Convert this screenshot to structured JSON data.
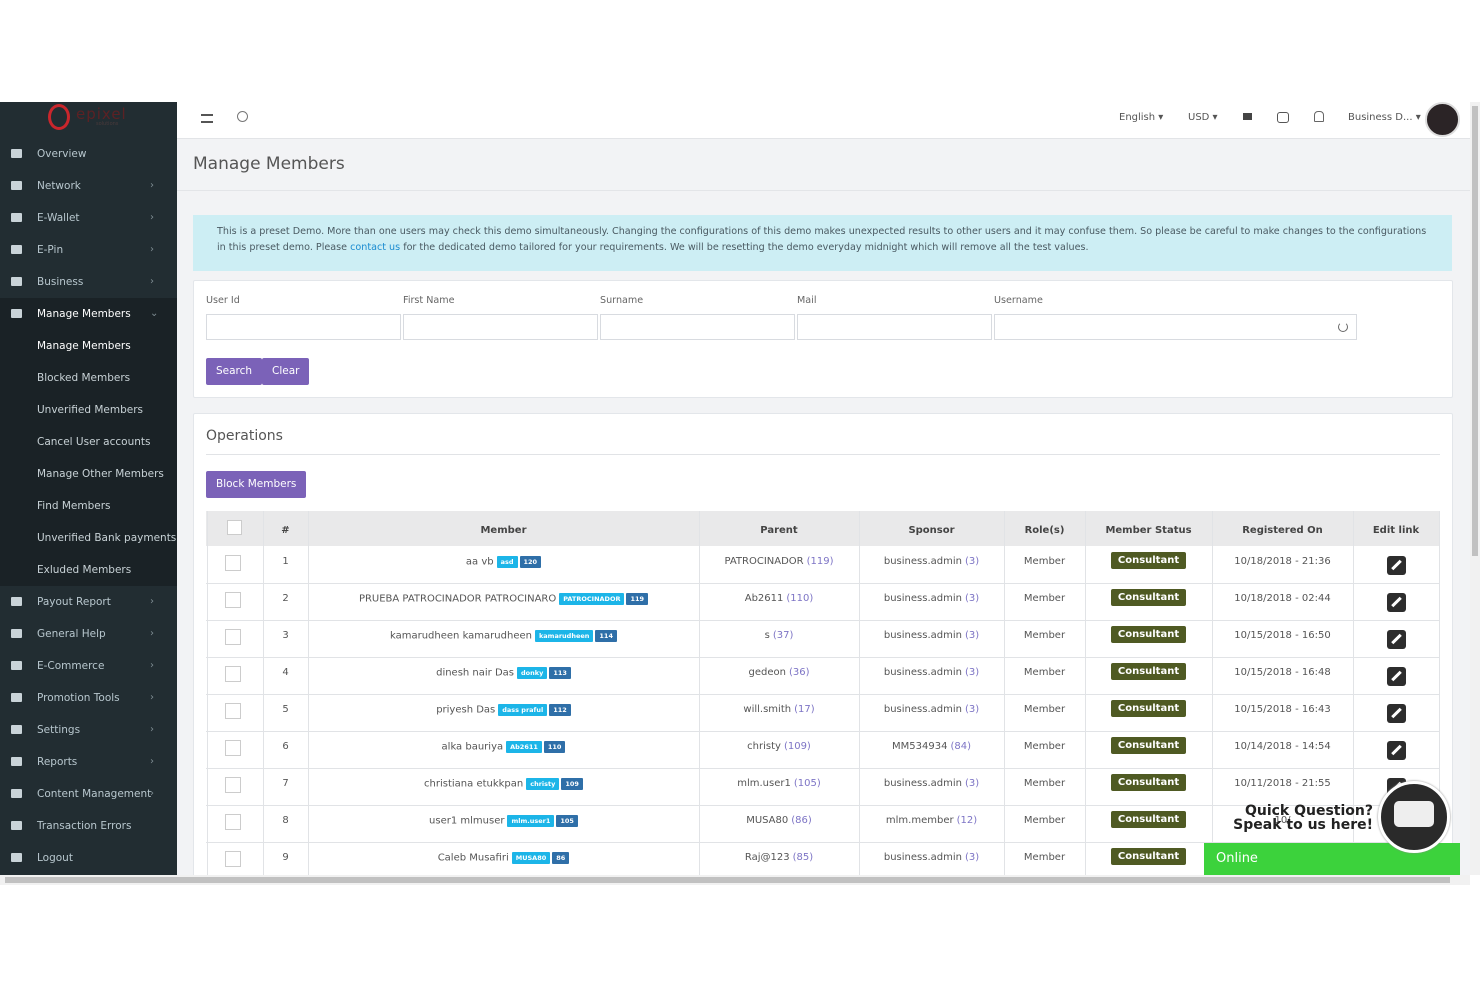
{
  "logo": {
    "name": "epixel",
    "sub": "solutions"
  },
  "sidebar": {
    "items": [
      {
        "label": "Overview",
        "has_children": false
      },
      {
        "label": "Network",
        "has_children": true
      },
      {
        "label": "E-Wallet",
        "has_children": true
      },
      {
        "label": "E-Pin",
        "has_children": true
      },
      {
        "label": "Business",
        "has_children": true
      },
      {
        "label": "Manage Members",
        "has_children": true,
        "open": true,
        "children": [
          "Manage Members",
          "Blocked Members",
          "Unverified Members",
          "Cancel User accounts",
          "Manage Other Members",
          "Find Members",
          "Unverified Bank payments",
          "Exluded Members"
        ]
      },
      {
        "label": "Payout Report",
        "has_children": true
      },
      {
        "label": "General Help",
        "has_children": true
      },
      {
        "label": "E-Commerce",
        "has_children": true
      },
      {
        "label": "Promotion Tools",
        "has_children": true
      },
      {
        "label": "Settings",
        "has_children": true
      },
      {
        "label": "Reports",
        "has_children": true
      },
      {
        "label": "Content Management",
        "has_children": true
      },
      {
        "label": "Transaction Errors",
        "has_children": false
      },
      {
        "label": "Logout",
        "has_children": false
      }
    ]
  },
  "topbar": {
    "language": "English",
    "currency": "USD",
    "user": "Business D..."
  },
  "page_title": "Manage Members",
  "notice": {
    "before": "This is a preset Demo. More than one users may check this demo simultaneously.  Changing the configurations of this demo makes unexpected results to other users and it may confuse them. So please be careful to make changes to the configurations in this preset demo. Please ",
    "link": "contact us",
    "after": " for the dedicated demo tailored for your requirements. We will be resetting the demo everyday midnight which will remove all the test values."
  },
  "filters": {
    "fields": [
      "User Id",
      "First Name",
      "Surname",
      "Mail",
      "Username"
    ],
    "buttons": [
      "Search",
      "Clear"
    ]
  },
  "operations": {
    "title": "Operations",
    "button": "Block Members"
  },
  "table": {
    "headers": [
      "#",
      "Member",
      "Parent",
      "Sponsor",
      "Role(s)",
      "Member Status",
      "Registered On",
      "Edit link"
    ],
    "rows": [
      {
        "num": "1",
        "member": "aa vb",
        "tag": "asd",
        "id": "120",
        "parent": "PATROCINADOR",
        "parent_id": "(119)",
        "sponsor": "business.admin",
        "sponsor_id": "(3)",
        "role": "Member",
        "status": "Consultant",
        "registered": "10/18/2018 - 21:36"
      },
      {
        "num": "2",
        "member": "PRUEBA PATROCINADOR PATROCINARO",
        "tag": "PATROCINADOR",
        "id": "119",
        "parent": "Ab2611",
        "parent_id": "(110)",
        "sponsor": "business.admin",
        "sponsor_id": "(3)",
        "role": "Member",
        "status": "Consultant",
        "registered": "10/18/2018 - 02:44"
      },
      {
        "num": "3",
        "member": "kamarudheen kamarudheen",
        "tag": "kamarudheen",
        "id": "114",
        "parent": "s",
        "parent_id": "(37)",
        "sponsor": "business.admin",
        "sponsor_id": "(3)",
        "role": "Member",
        "status": "Consultant",
        "registered": "10/15/2018 - 16:50"
      },
      {
        "num": "4",
        "member": "dinesh nair Das",
        "tag": "donky",
        "id": "113",
        "parent": "gedeon",
        "parent_id": "(36)",
        "sponsor": "business.admin",
        "sponsor_id": "(3)",
        "role": "Member",
        "status": "Consultant",
        "registered": "10/15/2018 - 16:48"
      },
      {
        "num": "5",
        "member": "priyesh Das",
        "tag": "dass praful",
        "id": "112",
        "parent": "will.smith",
        "parent_id": "(17)",
        "sponsor": "business.admin",
        "sponsor_id": "(3)",
        "role": "Member",
        "status": "Consultant",
        "registered": "10/15/2018 - 16:43"
      },
      {
        "num": "6",
        "member": "alka bauriya",
        "tag": "Ab2611",
        "id": "110",
        "parent": "christy",
        "parent_id": "(109)",
        "sponsor": "MM534934",
        "sponsor_id": "(84)",
        "role": "Member",
        "status": "Consultant",
        "registered": "10/14/2018 - 14:54"
      },
      {
        "num": "7",
        "member": "christiana etukkpan",
        "tag": "christy",
        "id": "109",
        "parent": "mlm.user1",
        "parent_id": "(105)",
        "sponsor": "business.admin",
        "sponsor_id": "(3)",
        "role": "Member",
        "status": "Consultant",
        "registered": "10/11/2018 - 21:55"
      },
      {
        "num": "8",
        "member": "user1 mlmuser",
        "tag": "mlm.user1",
        "id": "105",
        "parent": "MUSA80",
        "parent_id": "(86)",
        "sponsor": "mlm.member",
        "sponsor_id": "(12)",
        "role": "Member",
        "status": "Consultant",
        "registered": "10/"
      },
      {
        "num": "9",
        "member": "Caleb Musafiri",
        "tag": "MUSA80",
        "id": "86",
        "parent": "Raj@123",
        "parent_id": "(85)",
        "sponsor": "business.admin",
        "sponsor_id": "(3)",
        "role": "Member",
        "status": "Consultant"
      }
    ]
  },
  "chat": {
    "title": "Quick Question?",
    "subtitle": "Speak to us here!",
    "status": "Online"
  }
}
